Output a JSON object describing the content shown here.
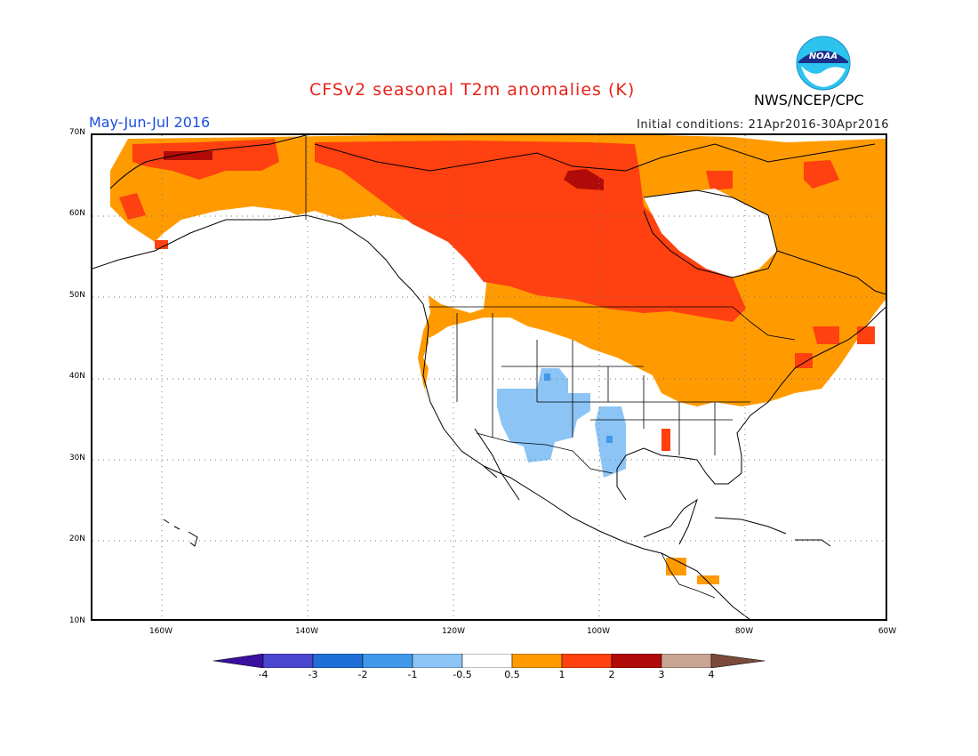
{
  "header": {
    "title": "CFSv2 seasonal T2m anomalies (K)",
    "agency": "NWS/NCEP/CPC",
    "period": "May-Jun-Jul 2016",
    "initial_conditions": "Initial conditions: 21Apr2016-30Apr2016",
    "logo_text": "NOAA"
  },
  "axes": {
    "lat_labels": [
      "70N",
      "60N",
      "50N",
      "40N",
      "30N",
      "20N",
      "10N"
    ],
    "lon_labels": [
      "160W",
      "140W",
      "120W",
      "100W",
      "80W",
      "60W"
    ]
  },
  "colorbar": {
    "ticks": [
      "-4",
      "-3",
      "-2",
      "-1",
      "-0.5",
      "0.5",
      "1",
      "2",
      "3",
      "4"
    ],
    "colors": [
      "#3a10a0",
      "#4b46d0",
      "#1f6fd6",
      "#3f98ea",
      "#8cc4f5",
      "#ffffff",
      "#ff9b00",
      "#ff4010",
      "#b00b08",
      "#c8a592",
      "#7a4a3c"
    ]
  },
  "anomaly_colors": {
    "cool_weak": "#8cc4f5",
    "cool": "#3f98ea",
    "warm_weak": "#ff9b00",
    "warm": "#ff4010",
    "warm_strong": "#b00b08"
  }
}
